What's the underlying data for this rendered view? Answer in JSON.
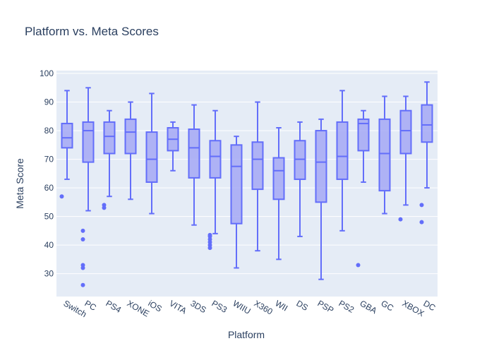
{
  "chart_data": {
    "type": "box",
    "title": "Platform vs. Meta Scores",
    "xlabel": "Platform",
    "ylabel": "Meta Score",
    "ylim": [
      22,
      101
    ],
    "yticks": [
      30,
      40,
      50,
      60,
      70,
      80,
      90,
      100
    ],
    "grid": true,
    "legend": "none",
    "colors": {
      "plot_bg": "#e5ecf6",
      "grid": "#ffffff",
      "box_fill": "#a4a8f4",
      "box_line": "#636efa",
      "text": "#2a3f5f"
    },
    "categories": [
      "Switch",
      "PC",
      "PS4",
      "XONE",
      "iOS",
      "VITA",
      "3DS",
      "PS3",
      "WIIU",
      "X360",
      "WII",
      "DS",
      "PSP",
      "PS2",
      "GBA",
      "GC",
      "XBOX",
      "DC"
    ],
    "boxes": [
      {
        "category": "Switch",
        "min": 63,
        "q1": 74,
        "median": 77.5,
        "q3": 82.5,
        "max": 94,
        "outliers": [
          57
        ]
      },
      {
        "category": "PC",
        "min": 52,
        "q1": 69,
        "median": 80,
        "q3": 83,
        "max": 95,
        "outliers": [
          45,
          42,
          33,
          32,
          26
        ]
      },
      {
        "category": "PS4",
        "min": 57,
        "q1": 72,
        "median": 78,
        "q3": 83,
        "max": 87,
        "outliers": [
          54,
          53
        ]
      },
      {
        "category": "XONE",
        "min": 56,
        "q1": 72,
        "median": 79.5,
        "q3": 84,
        "max": 90,
        "outliers": []
      },
      {
        "category": "iOS",
        "min": 51,
        "q1": 62,
        "median": 70,
        "q3": 79.5,
        "max": 93,
        "outliers": []
      },
      {
        "category": "VITA",
        "min": 66,
        "q1": 73,
        "median": 77,
        "q3": 81,
        "max": 83,
        "outliers": []
      },
      {
        "category": "3DS",
        "min": 47,
        "q1": 63.5,
        "median": 74,
        "q3": 80.5,
        "max": 89,
        "outliers": []
      },
      {
        "category": "PS3",
        "min": 44,
        "q1": 63.5,
        "median": 71,
        "q3": 76.5,
        "max": 87,
        "outliers": [
          43.5,
          43,
          42,
          41,
          40,
          39
        ]
      },
      {
        "category": "WIIU",
        "min": 32,
        "q1": 47.5,
        "median": 67.5,
        "q3": 75,
        "max": 78,
        "outliers": []
      },
      {
        "category": "X360",
        "min": 38,
        "q1": 59.5,
        "median": 70,
        "q3": 76,
        "max": 90,
        "outliers": []
      },
      {
        "category": "WII",
        "min": 35,
        "q1": 56,
        "median": 66,
        "q3": 70.5,
        "max": 81,
        "outliers": []
      },
      {
        "category": "DS",
        "min": 43,
        "q1": 63,
        "median": 70,
        "q3": 76.5,
        "max": 83,
        "outliers": []
      },
      {
        "category": "PSP",
        "min": 28,
        "q1": 55,
        "median": 69,
        "q3": 80,
        "max": 84,
        "outliers": []
      },
      {
        "category": "PS2",
        "min": 45,
        "q1": 63,
        "median": 71,
        "q3": 83,
        "max": 94,
        "outliers": []
      },
      {
        "category": "GBA",
        "min": 62,
        "q1": 73,
        "median": 82.5,
        "q3": 84,
        "max": 87,
        "outliers": [
          33
        ]
      },
      {
        "category": "GC",
        "min": 51,
        "q1": 59,
        "median": 72,
        "q3": 84,
        "max": 92,
        "outliers": []
      },
      {
        "category": "XBOX",
        "min": 54,
        "q1": 72,
        "median": 80,
        "q3": 87,
        "max": 92,
        "outliers": [
          49
        ]
      },
      {
        "category": "DC",
        "min": 60,
        "q1": 76,
        "median": 82,
        "q3": 89,
        "max": 97,
        "outliers": [
          54,
          48
        ]
      }
    ]
  }
}
